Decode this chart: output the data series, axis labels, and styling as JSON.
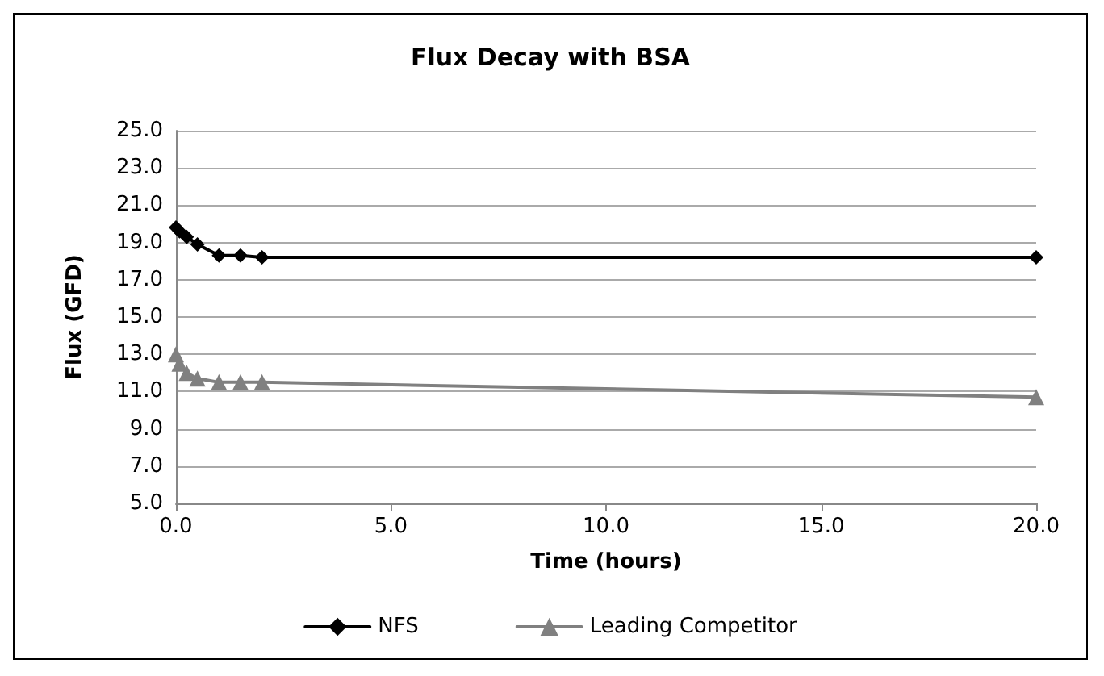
{
  "chart_data": {
    "type": "line",
    "title": "Flux Decay with BSA",
    "xlabel": "Time (hours)",
    "ylabel": "Flux (GFD)",
    "x": [
      0,
      0.083,
      0.25,
      0.5,
      1,
      1.5,
      2,
      20
    ],
    "series": [
      {
        "name": "NFS",
        "color": "#000000",
        "marker": "diamond",
        "values": [
          19.8,
          19.6,
          19.3,
          18.9,
          18.3,
          18.3,
          18.2,
          18.2
        ]
      },
      {
        "name": "Leading Competitor",
        "color": "#808080",
        "marker": "triangle",
        "values": [
          13.0,
          12.5,
          12.0,
          11.7,
          11.5,
          11.5,
          11.5,
          10.7
        ]
      }
    ],
    "xlim": [
      0,
      20
    ],
    "xticks": [
      {
        "value": 0,
        "label": "0.0"
      },
      {
        "value": 5,
        "label": "5.0"
      },
      {
        "value": 10,
        "label": "10.0"
      },
      {
        "value": 15,
        "label": "15.0"
      },
      {
        "value": 20,
        "label": "20.0"
      }
    ],
    "ylim": [
      5,
      25
    ],
    "yticks": [
      {
        "value": 5,
        "label": "5.0"
      },
      {
        "value": 7,
        "label": "7.0"
      },
      {
        "value": 9,
        "label": "9.0"
      },
      {
        "value": 11,
        "label": "11.0"
      },
      {
        "value": 13,
        "label": "13.0"
      },
      {
        "value": 15,
        "label": "15.0"
      },
      {
        "value": 17,
        "label": "17.0"
      },
      {
        "value": 19,
        "label": "19.0"
      },
      {
        "value": 21,
        "label": "21.0"
      },
      {
        "value": 23,
        "label": "23.0"
      },
      {
        "value": 25,
        "label": "25.0"
      }
    ],
    "grid": "y",
    "legend": "bottom",
    "line_style": "solid"
  }
}
